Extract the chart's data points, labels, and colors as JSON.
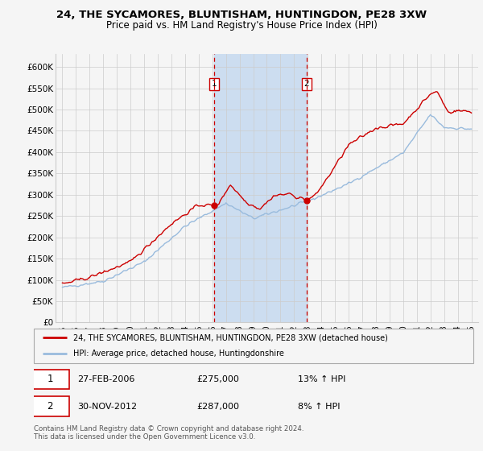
{
  "title": "24, THE SYCAMORES, BLUNTISHAM, HUNTINGDON, PE28 3XW",
  "subtitle": "Price paid vs. HM Land Registry's House Price Index (HPI)",
  "legend_line1": "24, THE SYCAMORES, BLUNTISHAM, HUNTINGDON, PE28 3XW (detached house)",
  "legend_line2": "HPI: Average price, detached house, Huntingdonshire",
  "sale1_date": "27-FEB-2006",
  "sale1_price": "£275,000",
  "sale1_hpi": "13% ↑ HPI",
  "sale2_date": "30-NOV-2012",
  "sale2_price": "£287,000",
  "sale2_hpi": "8% ↑ HPI",
  "footer": "Contains HM Land Registry data © Crown copyright and database right 2024.\nThis data is licensed under the Open Government Licence v3.0.",
  "sale1_year": 2006.15,
  "sale2_year": 2012.92,
  "sale1_price_val": 275000,
  "sale2_price_val": 287000,
  "ylim": [
    0,
    630000
  ],
  "yticks": [
    0,
    50000,
    100000,
    150000,
    200000,
    250000,
    300000,
    350000,
    400000,
    450000,
    500000,
    550000,
    600000
  ],
  "price_line_color": "#cc0000",
  "hpi_line_color": "#99bbdd",
  "background_color": "#f5f5f5",
  "plot_bg_color": "#f5f5f5",
  "shade_color": "#ccddf0",
  "grid_color": "#cccccc",
  "title_fontsize": 9.5,
  "subtitle_fontsize": 8.5
}
